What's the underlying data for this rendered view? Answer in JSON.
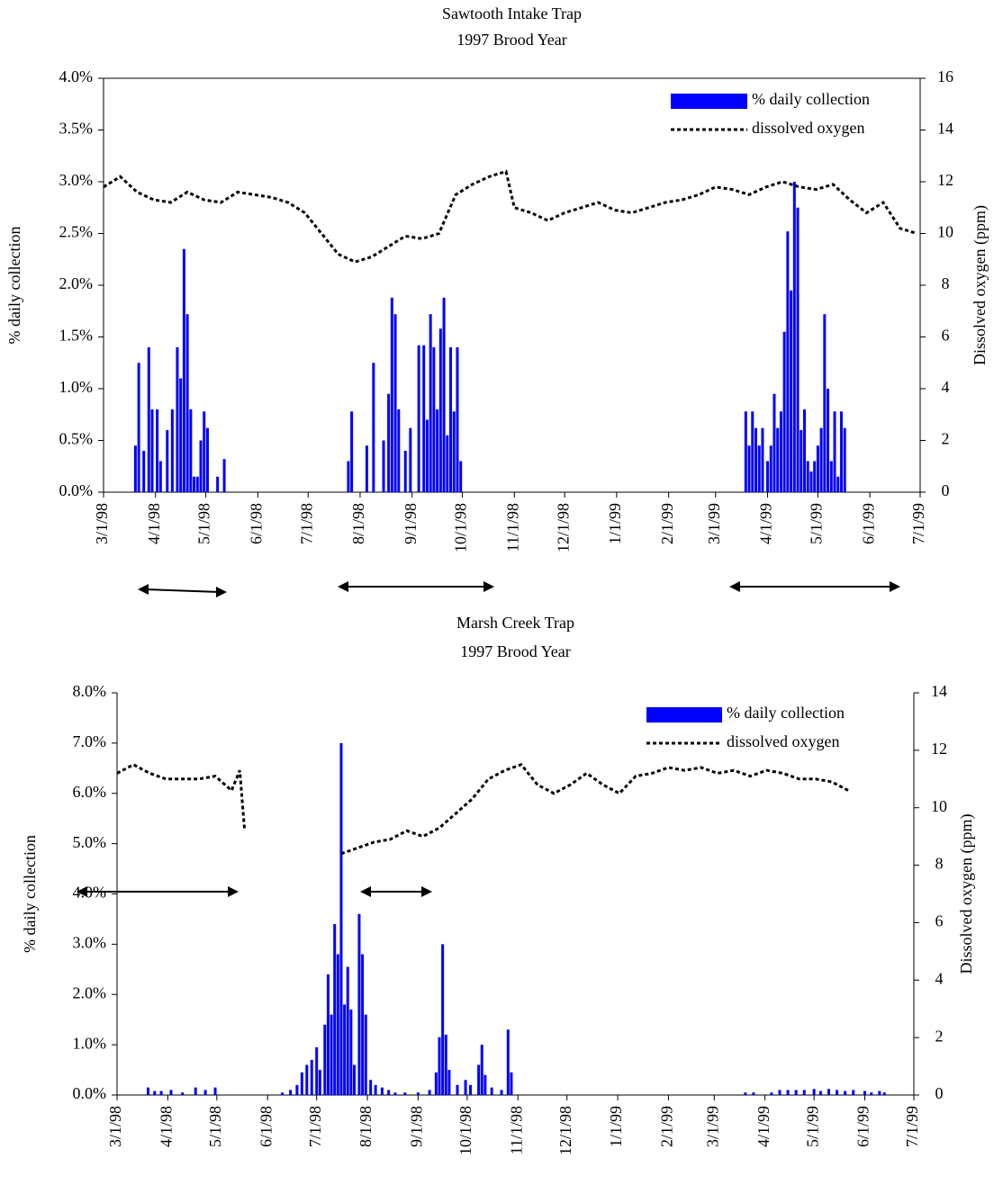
{
  "chart_data": [
    {
      "type": "combo",
      "title": "Sawtooth Intake Trap",
      "subtitle": "1997 Brood Year",
      "ylabel": "% daily collection",
      "y2label": "Dissolved oxygen (ppm)",
      "xlim": [
        "3/1/98",
        "7/1/99"
      ],
      "xticks": [
        "3/1/98",
        "4/1/98",
        "5/1/98",
        "6/1/98",
        "7/1/98",
        "8/1/98",
        "9/1/98",
        "10/1/98",
        "11/1/98",
        "12/1/98",
        "1/1/99",
        "2/1/99",
        "3/1/99",
        "4/1/99",
        "5/1/99",
        "6/1/99",
        "7/1/99"
      ],
      "ylim": [
        0,
        4
      ],
      "yticks": [
        {
          "value": 0,
          "label": "0.0%"
        },
        {
          "value": 0.5,
          "label": "0.5%"
        },
        {
          "value": 1,
          "label": "1.0%"
        },
        {
          "value": 1.5,
          "label": "1.5%"
        },
        {
          "value": 2,
          "label": "2.0%"
        },
        {
          "value": 2.5,
          "label": "2.5%"
        },
        {
          "value": 3,
          "label": "3.0%"
        },
        {
          "value": 3.5,
          "label": "3.5%"
        },
        {
          "value": 4,
          "label": "4.0%"
        }
      ],
      "y2lim": [
        0,
        16
      ],
      "y2ticks": [
        0,
        2,
        4,
        6,
        8,
        10,
        12,
        14,
        16
      ],
      "series": [
        {
          "name": "% daily collection",
          "color": "#0000ff",
          "type": "bar",
          "x": [
            "3/20/98",
            "3/22/98",
            "3/25/98",
            "3/28/98",
            "3/30/98",
            "4/2/98",
            "4/4/98",
            "4/8/98",
            "4/11/98",
            "4/14/98",
            "4/16/98",
            "4/18/98",
            "4/20/98",
            "4/22/98",
            "4/24/98",
            "4/26/98",
            "4/28/98",
            "4/30/98",
            "5/2/98",
            "5/8/98",
            "5/12/98",
            "7/25/98",
            "7/27/98",
            "8/5/98",
            "8/9/98",
            "8/15/98",
            "8/18/98",
            "8/20/98",
            "8/22/98",
            "8/24/98",
            "8/28/98",
            "8/31/98",
            "9/5/98",
            "9/8/98",
            "9/10/98",
            "9/12/98",
            "9/14/98",
            "9/16/98",
            "9/18/98",
            "9/20/98",
            "9/22/98",
            "9/24/98",
            "9/26/98",
            "9/28/98",
            "9/30/98",
            "3/19/99",
            "3/21/99",
            "3/23/99",
            "3/25/99",
            "3/27/99",
            "3/29/99",
            "4/1/99",
            "4/3/99",
            "4/5/99",
            "4/7/99",
            "4/9/99",
            "4/11/99",
            "4/13/99",
            "4/15/99",
            "4/17/99",
            "4/19/99",
            "4/21/99",
            "4/23/99",
            "4/25/99",
            "4/27/99",
            "4/29/99",
            "5/1/99",
            "5/3/99",
            "5/5/99",
            "5/7/99",
            "5/9/99",
            "5/11/99",
            "5/13/99",
            "5/15/99",
            "5/17/99"
          ],
          "values": [
            0.45,
            1.25,
            0.4,
            1.4,
            0.8,
            0.8,
            0.3,
            0.6,
            0.8,
            1.4,
            1.1,
            2.35,
            1.72,
            0.8,
            0.15,
            0.15,
            0.5,
            0.78,
            0.62,
            0.15,
            0.32,
            0.3,
            0.78,
            0.45,
            1.25,
            0.5,
            0.95,
            1.88,
            1.72,
            0.8,
            0.4,
            0.62,
            1.42,
            1.42,
            0.7,
            1.72,
            1.4,
            0.8,
            1.58,
            1.88,
            0.55,
            1.4,
            0.78,
            1.4,
            0.3,
            0.78,
            0.45,
            0.78,
            0.62,
            0.45,
            0.62,
            0.3,
            0.45,
            0.95,
            0.62,
            0.78,
            1.55,
            2.52,
            1.95,
            3.0,
            2.75,
            0.6,
            0.8,
            0.3,
            0.2,
            0.3,
            0.45,
            0.62,
            1.72,
            1.0,
            0.3,
            0.78,
            0.15,
            0.78,
            0.62
          ]
        },
        {
          "name": "dissolved oxygen",
          "color": "#000000",
          "type": "line",
          "axis": "y2",
          "x": [
            "3/1/98",
            "3/11/98",
            "3/21/98",
            "3/31/98",
            "4/10/98",
            "4/20/98",
            "4/30/98",
            "5/10/98",
            "5/20/98",
            "5/30/98",
            "6/9/98",
            "6/19/98",
            "6/29/98",
            "7/9/98",
            "7/19/98",
            "7/29/98",
            "8/8/98",
            "8/18/98",
            "8/28/98",
            "9/7/98",
            "9/17/98",
            "9/27/98",
            "10/7/98",
            "10/17/98",
            "10/27/98",
            "11/1/98",
            "11/11/98",
            "11/21/98",
            "12/1/98",
            "12/11/98",
            "12/21/98",
            "12/31/98",
            "1/10/99",
            "1/20/99",
            "1/30/99",
            "2/9/99",
            "2/19/99",
            "3/1/99",
            "3/11/99",
            "3/21/99",
            "3/31/99",
            "4/10/99",
            "4/20/99",
            "4/30/99",
            "5/10/99",
            "5/20/99",
            "5/30/99",
            "6/9/99",
            "6/19/99",
            "6/29/99"
          ],
          "values": [
            11.8,
            12.2,
            11.6,
            11.3,
            11.2,
            11.6,
            11.3,
            11.2,
            11.6,
            11.5,
            11.4,
            11.2,
            10.8,
            10.0,
            9.2,
            8.9,
            9.1,
            9.5,
            9.9,
            9.8,
            10.0,
            11.5,
            11.9,
            12.2,
            12.4,
            11.0,
            10.8,
            10.5,
            10.8,
            11.0,
            11.2,
            10.9,
            10.8,
            11.0,
            11.2,
            11.3,
            11.5,
            11.8,
            11.7,
            11.5,
            11.8,
            12.0,
            11.8,
            11.7,
            11.9,
            11.3,
            10.8,
            11.2,
            10.2,
            10.0
          ]
        }
      ]
    },
    {
      "type": "combo",
      "title": "Marsh Creek Trap",
      "subtitle": "1997 Brood Year",
      "ylabel": "% daily collection",
      "y2label": "Dissolved oxygen (ppm)",
      "xlim": [
        "3/1/98",
        "7/1/99"
      ],
      "xticks": [
        "3/1/98",
        "4/1/98",
        "5/1/98",
        "6/1/98",
        "7/1/98",
        "8/1/98",
        "9/1/98",
        "10/1/98",
        "11/1/98",
        "12/1/98",
        "1/1/99",
        "2/1/99",
        "3/1/99",
        "4/1/99",
        "5/1/99",
        "6/1/99",
        "7/1/99"
      ],
      "ylim": [
        0,
        8
      ],
      "yticks": [
        {
          "value": 0,
          "label": "0.0%"
        },
        {
          "value": 1,
          "label": "1.0%"
        },
        {
          "value": 2,
          "label": "2.0%"
        },
        {
          "value": 3,
          "label": "3.0%"
        },
        {
          "value": 4,
          "label": "4.0%"
        },
        {
          "value": 5,
          "label": "5.0%"
        },
        {
          "value": 6,
          "label": "6.0%"
        },
        {
          "value": 7,
          "label": "7.0%"
        },
        {
          "value": 8,
          "label": "8.0%"
        }
      ],
      "y2lim": [
        0,
        14
      ],
      "y2ticks": [
        0,
        2,
        4,
        6,
        8,
        10,
        12,
        14
      ],
      "series": [
        {
          "name": "% daily collection",
          "color": "#0000ff",
          "type": "bar",
          "x": [
            "3/20/98",
            "3/24/98",
            "3/28/98",
            "4/3/98",
            "4/10/98",
            "4/18/98",
            "4/24/98",
            "4/30/98",
            "6/10/98",
            "6/15/98",
            "6/19/98",
            "6/22/98",
            "6/25/98",
            "6/28/98",
            "7/1/98",
            "7/3/98",
            "7/6/98",
            "7/8/98",
            "7/10/98",
            "7/12/98",
            "7/14/98",
            "7/16/98",
            "7/18/98",
            "7/20/98",
            "7/22/98",
            "7/24/98",
            "7/27/98",
            "7/29/98",
            "7/31/98",
            "8/3/98",
            "8/6/98",
            "8/10/98",
            "8/14/98",
            "8/18/98",
            "8/24/98",
            "9/1/98",
            "9/8/98",
            "9/12/98",
            "9/14/98",
            "9/16/98",
            "9/18/98",
            "9/20/98",
            "9/25/98",
            "9/30/98",
            "10/3/98",
            "10/8/98",
            "10/10/98",
            "10/12/98",
            "10/16/98",
            "10/22/98",
            "10/26/98",
            "10/28/98",
            "3/20/99",
            "3/25/99",
            "4/5/99",
            "4/10/99",
            "4/15/99",
            "4/20/99",
            "4/25/99",
            "5/1/99",
            "5/5/99",
            "5/10/99",
            "5/15/99",
            "5/20/99",
            "5/25/99",
            "6/1/99",
            "6/5/99",
            "6/10/99",
            "6/13/99"
          ],
          "values": [
            0.15,
            0.08,
            0.08,
            0.1,
            0.05,
            0.15,
            0.1,
            0.15,
            0.05,
            0.1,
            0.2,
            0.45,
            0.6,
            0.7,
            0.95,
            0.5,
            1.4,
            2.4,
            1.6,
            3.4,
            2.8,
            7.0,
            1.8,
            2.55,
            1.7,
            0.6,
            3.6,
            2.8,
            1.6,
            0.3,
            0.2,
            0.15,
            0.1,
            0.05,
            0.05,
            0.05,
            0.1,
            0.45,
            1.15,
            3.0,
            1.2,
            0.5,
            0.2,
            0.3,
            0.2,
            0.6,
            1.0,
            0.4,
            0.15,
            0.1,
            1.3,
            0.45,
            0.05,
            0.05,
            0.05,
            0.1,
            0.1,
            0.1,
            0.1,
            0.12,
            0.08,
            0.12,
            0.1,
            0.08,
            0.1,
            0.08,
            0.05,
            0.08,
            0.05
          ]
        },
        {
          "name": "dissolved oxygen",
          "color": "#000000",
          "type": "line",
          "axis": "y2",
          "x": [
            "3/1/98",
            "3/11/98",
            "3/21/98",
            "3/31/98",
            "4/10/98",
            "4/20/98",
            "4/30/98",
            "5/10/98",
            "5/15/98",
            "5/18/98",
            "6/15/98",
            "7/16/98",
            "7/26/98",
            "8/5/98",
            "8/15/98",
            "8/25/98",
            "9/4/98",
            "9/14/98",
            "9/24/98",
            "10/4/98",
            "10/14/98",
            "10/24/98",
            "11/3/98",
            "11/13/98",
            "11/23/98",
            "12/3/98",
            "12/13/98",
            "12/23/98",
            "1/2/99",
            "1/12/99",
            "1/22/99",
            "2/1/99",
            "2/11/99",
            "2/21/99",
            "3/3/99",
            "3/13/99",
            "3/23/99",
            "4/2/99",
            "4/12/99",
            "4/22/99",
            "5/2/99",
            "5/12/99",
            "5/22/99"
          ],
          "values": [
            11.2,
            11.5,
            11.2,
            11.0,
            11.0,
            11.0,
            11.1,
            10.6,
            11.3,
            9.2,
            null,
            8.4,
            8.6,
            8.8,
            8.9,
            9.2,
            9.0,
            9.3,
            9.8,
            10.3,
            11.0,
            11.3,
            11.5,
            10.8,
            10.5,
            10.8,
            11.2,
            10.8,
            10.5,
            11.1,
            11.2,
            11.4,
            11.3,
            11.4,
            11.2,
            11.3,
            11.1,
            11.3,
            11.2,
            11.0,
            11.0,
            10.9,
            10.6
          ]
        }
      ]
    }
  ]
}
